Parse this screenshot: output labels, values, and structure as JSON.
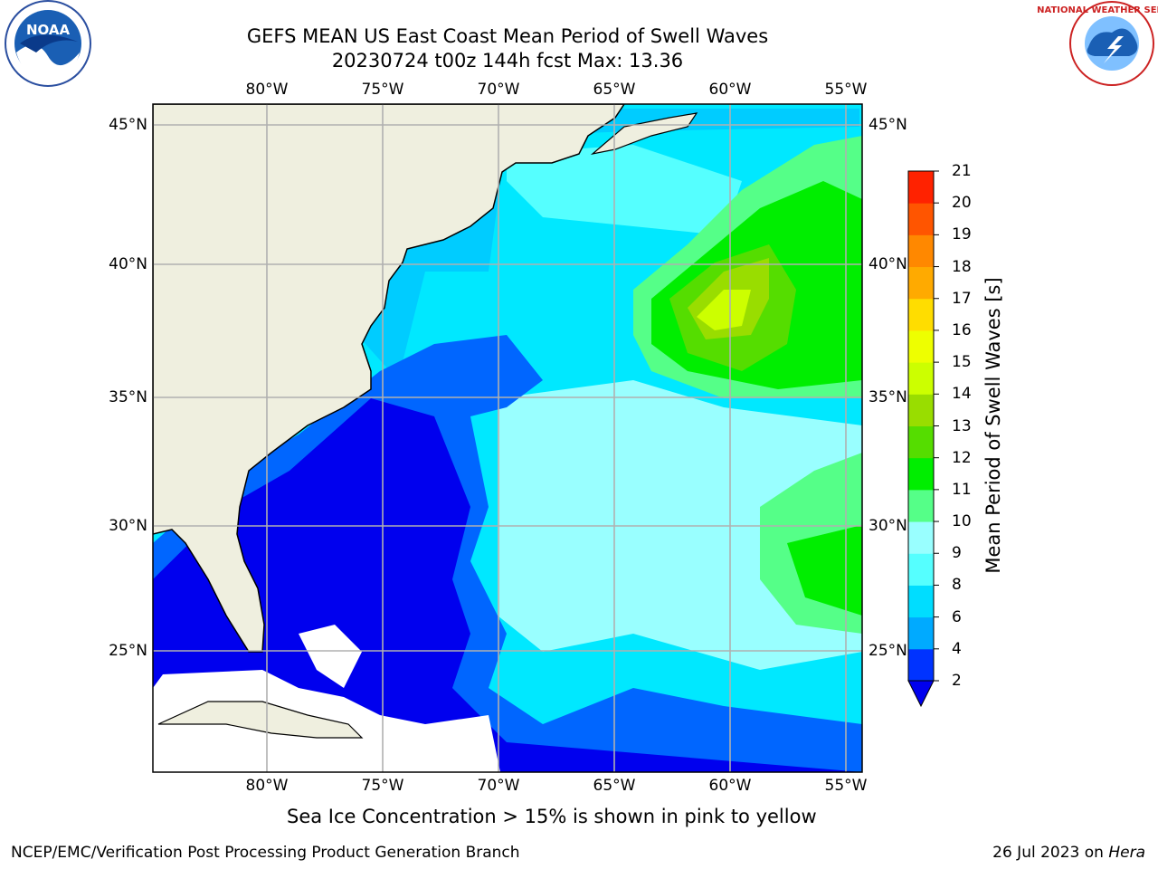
{
  "header": {
    "title_line1": "GEFS MEAN US East Coast Mean Period of Swell Waves",
    "title_line2": "20230724 t00z 144h fcst   Max: 13.36"
  },
  "logos": {
    "left": "noara-logo",
    "right": "national-weather-service-logo",
    "left_text": "NOAA"
  },
  "map": {
    "lon_labels": [
      "80°W",
      "75°W",
      "70°W",
      "65°W",
      "60°W",
      "55°W"
    ],
    "lat_labels": [
      "45°N",
      "40°N",
      "35°N",
      "30°N",
      "25°N"
    ],
    "colors": {
      "land": "#efefdf",
      "no_data": "#ffffff",
      "grid": "#b0b0b0"
    }
  },
  "colorbar": {
    "title": "Mean Period of Swell Waves [s]",
    "ticks": [
      "2",
      "4",
      "6",
      "8",
      "9",
      "10",
      "11",
      "12",
      "13",
      "14",
      "15",
      "16",
      "17",
      "18",
      "19",
      "20",
      "21"
    ],
    "colors": [
      "#0000ee",
      "#0033ff",
      "#00aaff",
      "#00ddff",
      "#55ffff",
      "#99ffff",
      "#55ff88",
      "#00ee00",
      "#55dd00",
      "#99dd00",
      "#ccff00",
      "#eeff00",
      "#ffdd00",
      "#ffaa00",
      "#ff8800",
      "#ff5500",
      "#ff2200",
      "#ee0000"
    ]
  },
  "caption": "Sea Ice Concentration > 15% is shown in pink to yellow",
  "footer": {
    "left": "NCEP/EMC/Verification Post Processing Product Generation Branch",
    "right_date": "26 Jul 2023 on ",
    "right_host": "Hera"
  }
}
